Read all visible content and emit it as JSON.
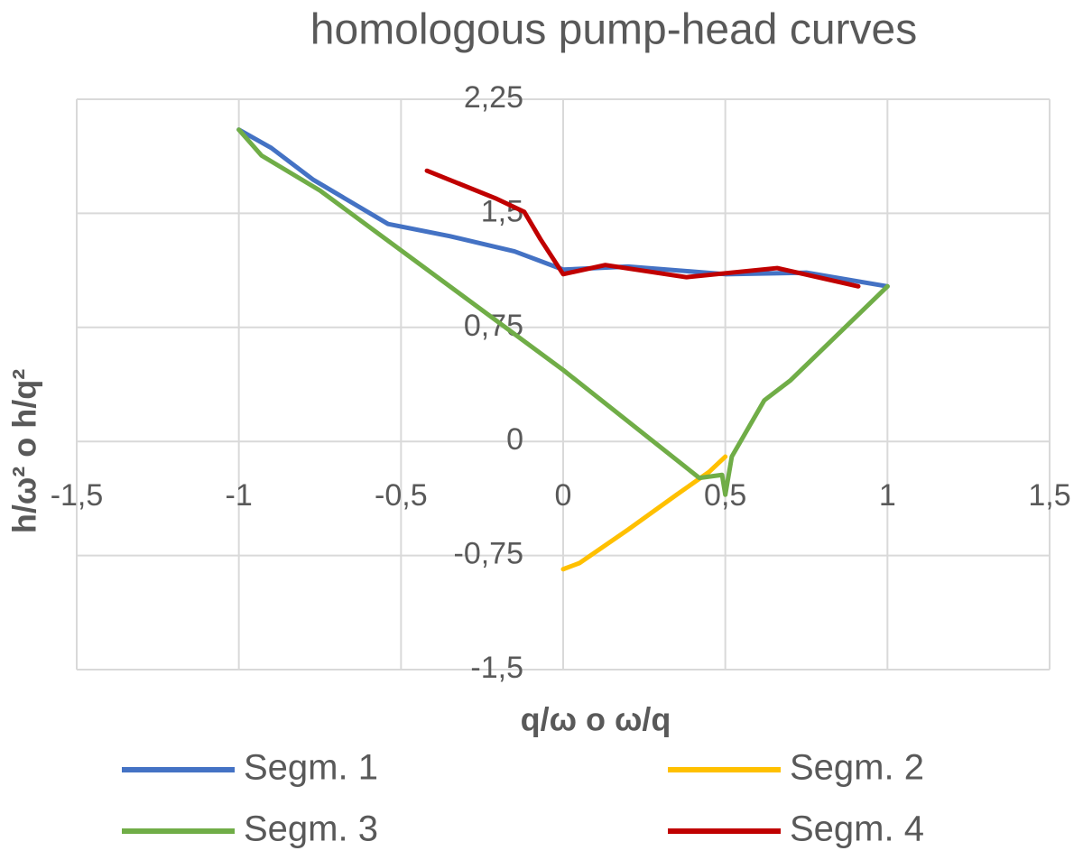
{
  "chart_data": {
    "type": "line",
    "title": "homologous pump-head curves",
    "x_label": "q/ω o ω/q",
    "y_label": "h/ω² o h/q²",
    "xlim": [
      -1.5,
      1.5
    ],
    "xticks": [
      {
        "value": -1.5,
        "label": "-1,5"
      },
      -1,
      {
        "value": -0.5,
        "label": "-0,5"
      },
      0,
      {
        "value": 0.5,
        "label": "0,5"
      },
      1,
      {
        "value": 1.5,
        "label": "1,5"
      }
    ],
    "ylim": [
      -1.5,
      2.25
    ],
    "yticks": [
      {
        "value": 2.25,
        "label": "2,25"
      },
      {
        "value": 1.5,
        "label": "1,5"
      },
      {
        "value": 0.75,
        "label": "0,75"
      },
      0,
      {
        "value": -0.75,
        "label": "-0,75"
      },
      {
        "value": -1.5,
        "label": "-1,5"
      }
    ],
    "grid": true,
    "legend": "bottom",
    "series": [
      {
        "name": "Segm. 1",
        "color": "#4472c4",
        "x": [
          -1,
          -0.9,
          -0.77,
          -0.54,
          -0.35,
          -0.15,
          0,
          0.2,
          0.5,
          0.75,
          1
        ],
        "values": [
          2.05,
          1.93,
          1.72,
          1.43,
          1.35,
          1.25,
          1.13,
          1.15,
          1.1,
          1.11,
          1.02
        ]
      },
      {
        "name": "Segm. 2",
        "color": "#ffc000",
        "x": [
          0,
          0.05,
          0.2,
          0.35,
          0.45,
          0.5
        ],
        "values": [
          -0.84,
          -0.8,
          -0.58,
          -0.35,
          -0.2,
          -0.1
        ]
      },
      {
        "name": "Segm. 3",
        "color": "#70ad47",
        "x": [
          -1,
          -0.93,
          -0.75,
          0,
          0.42,
          0.49,
          0.5,
          0.52,
          0.62,
          0.7,
          1
        ],
        "values": [
          2.05,
          1.88,
          1.65,
          0.47,
          -0.24,
          -0.22,
          -0.35,
          -0.1,
          0.27,
          0.4,
          1.02
        ]
      },
      {
        "name": "Segm. 4",
        "color": "#c00000",
        "x": [
          -0.42,
          -0.21,
          -0.12,
          -0.07,
          0,
          0.13,
          0.38,
          0.66,
          0.91
        ],
        "values": [
          1.78,
          1.6,
          1.51,
          1.33,
          1.1,
          1.16,
          1.08,
          1.14,
          1.02
        ]
      }
    ]
  }
}
